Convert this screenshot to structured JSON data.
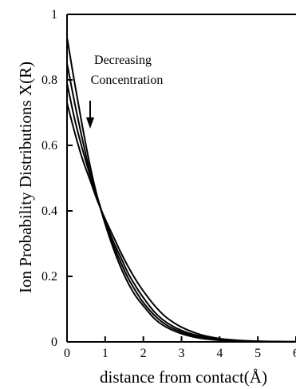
{
  "chart_data": {
    "type": "line",
    "title": "",
    "xlabel": "distance from contact(Å)",
    "ylabel": "Ion Probability Distributions X(R)",
    "xlim": [
      0,
      6
    ],
    "ylim": [
      0,
      1
    ],
    "x_ticks": [
      "0",
      "1",
      "2",
      "3",
      "4",
      "5",
      "6"
    ],
    "y_ticks": [
      "0",
      "0.2",
      "0.4",
      "0.6",
      "0.8",
      "1"
    ],
    "grid": false,
    "legend": "none",
    "series": [
      {
        "x": [
          0,
          0.2,
          0.4,
          0.6,
          0.8,
          1.0,
          1.2,
          1.4,
          1.6,
          1.8,
          2.0,
          2.3,
          2.6,
          3.0,
          3.5,
          4.0,
          4.5,
          5.0,
          5.5,
          6.0
        ],
        "y": [
          0.93,
          0.79,
          0.66,
          0.54,
          0.44,
          0.36,
          0.29,
          0.23,
          0.18,
          0.14,
          0.11,
          0.07,
          0.045,
          0.025,
          0.011,
          0.005,
          0.002,
          0.001,
          0.0005,
          0.0002
        ]
      },
      {
        "x": [
          0,
          0.2,
          0.4,
          0.6,
          0.8,
          1.0,
          1.2,
          1.4,
          1.6,
          1.8,
          2.0,
          2.3,
          2.6,
          3.0,
          3.5,
          4.0,
          4.5,
          5.0,
          5.5,
          6.0
        ],
        "y": [
          0.85,
          0.73,
          0.62,
          0.52,
          0.44,
          0.365,
          0.3,
          0.245,
          0.195,
          0.155,
          0.12,
          0.08,
          0.052,
          0.03,
          0.014,
          0.006,
          0.0025,
          0.001,
          0.0005,
          0.0002
        ]
      },
      {
        "x": [
          0,
          0.2,
          0.4,
          0.6,
          0.8,
          1.0,
          1.2,
          1.4,
          1.6,
          1.8,
          2.0,
          2.3,
          2.6,
          3.0,
          3.5,
          4.0,
          4.5,
          5.0,
          5.5,
          6.0
        ],
        "y": [
          0.79,
          0.68,
          0.59,
          0.51,
          0.435,
          0.37,
          0.31,
          0.26,
          0.21,
          0.17,
          0.135,
          0.09,
          0.06,
          0.035,
          0.017,
          0.008,
          0.003,
          0.0012,
          0.0005,
          0.0002
        ]
      },
      {
        "x": [
          0,
          0.2,
          0.4,
          0.6,
          0.8,
          1.0,
          1.2,
          1.4,
          1.6,
          1.8,
          2.0,
          2.3,
          2.6,
          3.0,
          3.5,
          4.0,
          4.5,
          5.0,
          5.5,
          6.0
        ],
        "y": [
          0.73,
          0.64,
          0.56,
          0.495,
          0.43,
          0.375,
          0.325,
          0.275,
          0.23,
          0.19,
          0.155,
          0.11,
          0.075,
          0.045,
          0.022,
          0.01,
          0.0045,
          0.002,
          0.0008,
          0.0003
        ]
      }
    ],
    "annotation": {
      "line1": "Decreasing",
      "line2": "Concentration"
    }
  }
}
